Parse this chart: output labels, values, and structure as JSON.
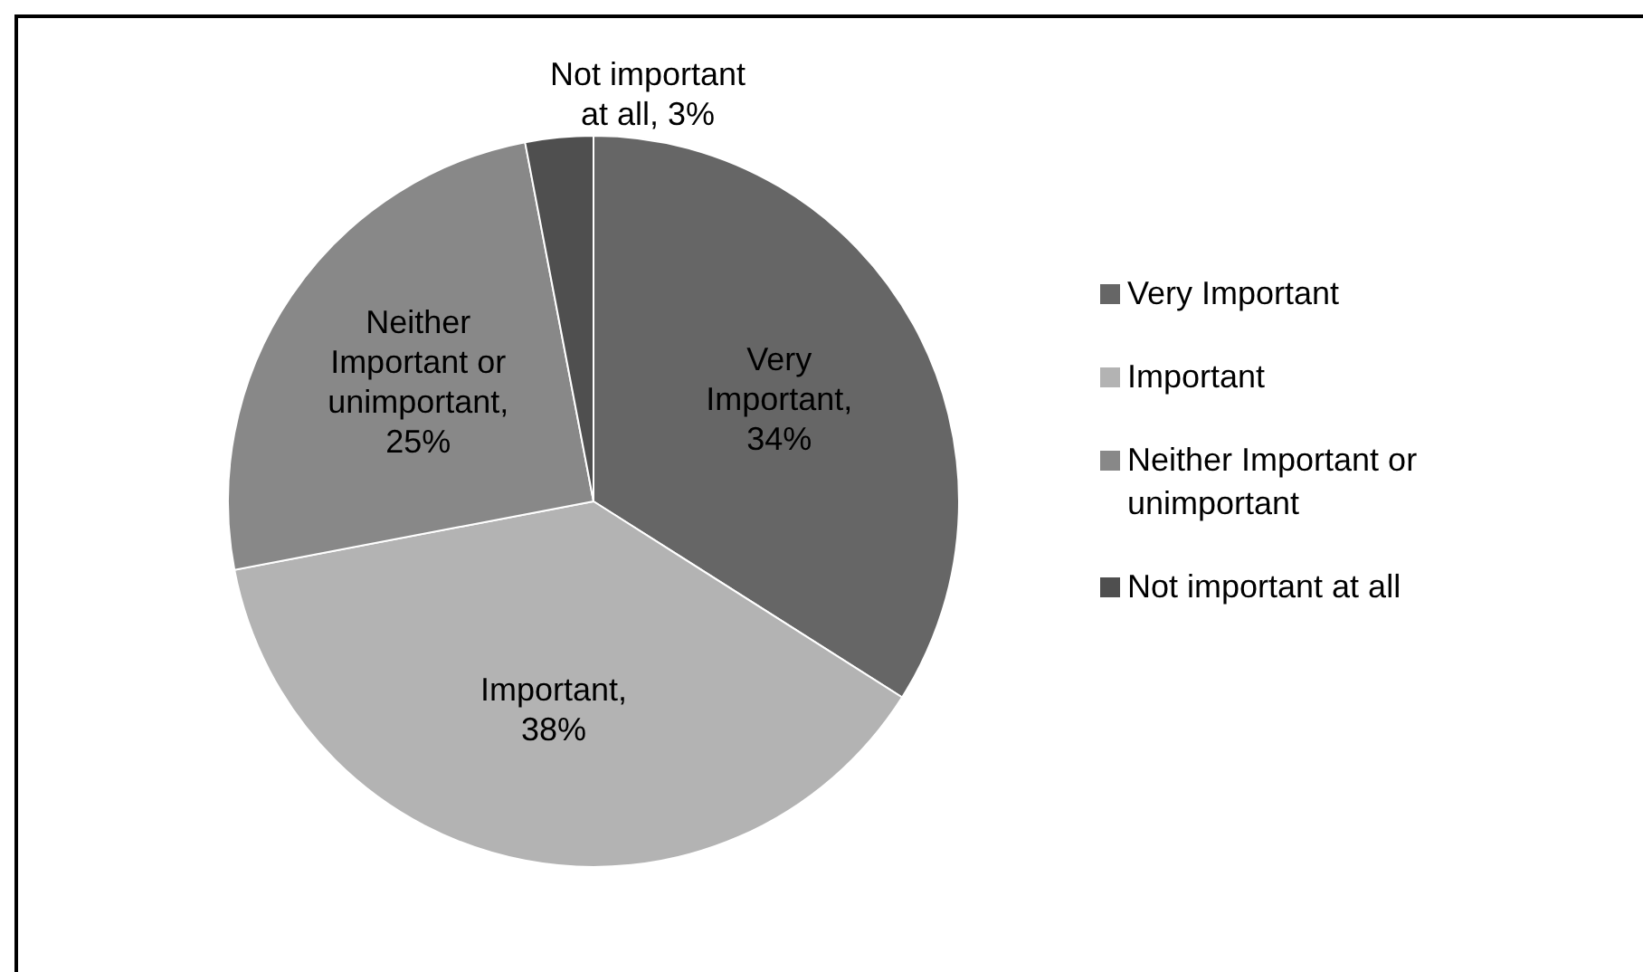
{
  "chart_data": {
    "type": "pie",
    "categories": [
      "Very Important",
      "Important",
      "Neither Important or unimportant",
      "Not important at all"
    ],
    "values": [
      34,
      38,
      25,
      3
    ],
    "colors": [
      "#666666",
      "#b3b3b3",
      "#888888",
      "#4f4f4f"
    ],
    "value_labels": [
      "Very Important, 34%",
      "Important, 38%",
      "Neither Important or unimportant, 25%",
      "Not important at all, 3%"
    ],
    "legend": "right"
  }
}
